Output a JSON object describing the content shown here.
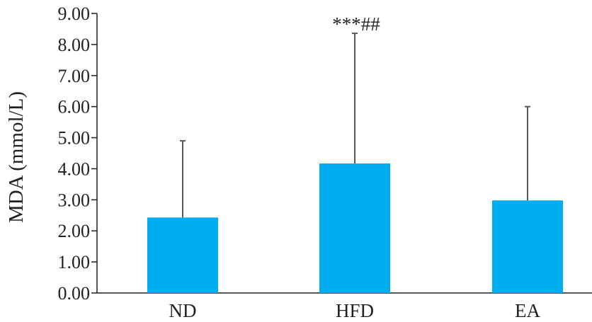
{
  "chart_data": {
    "type": "bar",
    "categories": [
      "ND",
      "HFD",
      "EA"
    ],
    "values": [
      2.43,
      4.17,
      2.98
    ],
    "error_upper": [
      4.9,
      8.36,
      6.0
    ],
    "ylabel": "MDA (mmol/L)",
    "xlabel": "",
    "ylim": [
      0,
      9
    ],
    "yticks": [
      "0.00",
      "1.00",
      "2.00",
      "3.00",
      "4.00",
      "5.00",
      "6.00",
      "7.00",
      "8.00",
      "9.00"
    ],
    "annotations": [
      {
        "category": "HFD",
        "text": "***##"
      }
    ],
    "grid": false,
    "bar_color": "#00aeef",
    "axis_color": "#231f20",
    "error_bar_color": "#58595b"
  }
}
